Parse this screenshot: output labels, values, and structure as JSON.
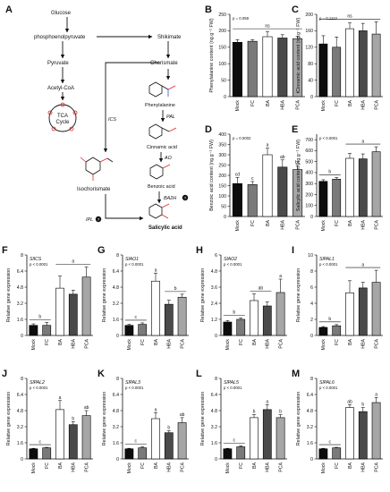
{
  "figure": {
    "pathway": {
      "panel": "A",
      "nodes": {
        "glucose": "Glucose",
        "pep": "phosphoenolpyruvate",
        "pyruvate": "Pyruvate",
        "acetylcoa": "Acetyl-CoA",
        "tca": "TCA",
        "cycle": "Cycle",
        "shikimate": "Shikimate",
        "chorismate": "Chorismate",
        "phenylalanine": "Phenylalanine",
        "cinnamic": "Cinnamic acid",
        "benzoic": "Benzoic acid",
        "salicylic": "Salicylic acid",
        "isochorismate": "Isochorismate"
      },
      "enzymes": {
        "ics": "ICS",
        "pal": "PAL",
        "ao": "AO",
        "ba2h": "BA2H",
        "ipl": "IPL"
      },
      "unknown_marker": "?"
    }
  },
  "chart_data": [
    {
      "panel": "B",
      "type": "bar",
      "categories": [
        "Mock",
        "FC",
        "BA",
        "HBA",
        "PCA"
      ],
      "values": [
        165,
        168,
        182,
        178,
        176
      ],
      "errors": [
        8,
        5,
        16,
        10,
        8
      ],
      "ylabel": "Phenylalanine content (ng.g⁻¹ FW)",
      "ylim": [
        0,
        250
      ],
      "yticks": [
        0,
        50,
        100,
        150,
        200,
        250
      ],
      "pvalue": "p = 0.059",
      "letters": [],
      "groups": [
        {
          "from": 0,
          "to": 4,
          "label": "ns"
        }
      ]
    },
    {
      "panel": "C",
      "type": "bar",
      "categories": [
        "Mock",
        "FC",
        "BA",
        "HBA",
        "PCA"
      ],
      "values": [
        128,
        120,
        165,
        160,
        152
      ],
      "errors": [
        20,
        25,
        14,
        18,
        30
      ],
      "ylabel": "tCinnamic acid content (ng.g⁻¹ FW)",
      "ylim": [
        0,
        200
      ],
      "yticks": [
        0,
        40,
        80,
        120,
        160,
        200
      ],
      "pvalue": "p = 0.1113",
      "letters": [],
      "groups": [
        {
          "from": 0,
          "to": 4,
          "label": "ns"
        }
      ]
    },
    {
      "panel": "D",
      "type": "bar",
      "categories": [
        "Mock",
        "FC",
        "BA",
        "HBA",
        "PCA"
      ],
      "values": [
        160,
        155,
        300,
        240,
        228
      ],
      "errors": [
        30,
        15,
        32,
        35,
        20
      ],
      "ylabel": "Benzoic acid content (ng.g⁻¹ FW)",
      "ylim": [
        0,
        400
      ],
      "yticks": [
        0,
        50,
        100,
        150,
        200,
        250,
        300,
        350,
        400
      ],
      "pvalue": "p = 0.0002",
      "letters": [
        "cd",
        "c",
        "a",
        "ab",
        "bc"
      ],
      "groups": []
    },
    {
      "panel": "E",
      "type": "bar",
      "categories": [
        "Mock",
        "FC",
        "BA",
        "HBA",
        "PCA"
      ],
      "values": [
        320,
        340,
        530,
        525,
        590
      ],
      "errors": [
        15,
        15,
        45,
        45,
        45
      ],
      "ylabel": "Salicylic acid content (ng.g⁻¹ FW)",
      "ylim": [
        0,
        750
      ],
      "yticks": [
        0,
        100,
        200,
        300,
        400,
        500,
        600,
        700
      ],
      "pvalue": "p < 0.0001",
      "letters": [],
      "groups": [
        {
          "from": 0,
          "to": 1,
          "label": "b"
        },
        {
          "from": 2,
          "to": 4,
          "label": "a"
        }
      ]
    },
    {
      "panel": "F",
      "gene": "SlICS",
      "type": "bar",
      "categories": [
        "Mock",
        "FC",
        "BA",
        "HBA",
        "PCA"
      ],
      "values": [
        1.0,
        1.0,
        4.7,
        4.1,
        5.8
      ],
      "errors": [
        0.15,
        0.3,
        1.2,
        0.4,
        1.0
      ],
      "ylabel": "Relative gene expression",
      "ylim": [
        0,
        8
      ],
      "yticks": [
        0,
        1.6,
        3.2,
        4.8,
        6.4,
        8
      ],
      "pvalue": "p < 0.0001",
      "letters": [],
      "groups": [
        {
          "from": 0,
          "to": 1,
          "label": "b"
        },
        {
          "from": 2,
          "to": 4,
          "label": "a"
        }
      ]
    },
    {
      "panel": "G",
      "gene": "SlAO1",
      "type": "bar",
      "categories": [
        "Mock",
        "FC",
        "BA",
        "HBA",
        "PCA"
      ],
      "values": [
        1.0,
        1.1,
        5.4,
        3.1,
        3.8
      ],
      "errors": [
        0.1,
        0.15,
        0.8,
        0.4,
        0.3
      ],
      "ylabel": "Relative gene expression",
      "ylim": [
        0,
        8
      ],
      "yticks": [
        0,
        1.6,
        3.2,
        4.8,
        6.4,
        8
      ],
      "pvalue": "p < 0.0001",
      "letters": [
        "",
        "",
        "a",
        "",
        ""
      ],
      "groups": [
        {
          "from": 0,
          "to": 1,
          "label": "c"
        },
        {
          "from": 3,
          "to": 4,
          "label": "b"
        }
      ]
    },
    {
      "panel": "H",
      "gene": "SlAO2",
      "type": "bar",
      "categories": [
        "Mock",
        "FC",
        "BA",
        "HBA",
        "PCA"
      ],
      "values": [
        1.0,
        1.2,
        2.6,
        2.2,
        3.2
      ],
      "errors": [
        0.1,
        0.1,
        0.5,
        0.3,
        1.0
      ],
      "ylabel": "Relative gene expression",
      "ylim": [
        0,
        6
      ],
      "yticks": [
        0,
        1.2,
        2.4,
        3.6,
        4.8,
        6
      ],
      "pvalue": "p < 0.0001",
      "letters": [
        "",
        "",
        "",
        "",
        "a"
      ],
      "groups": [
        {
          "from": 0,
          "to": 1,
          "label": "b"
        },
        {
          "from": 2,
          "to": 3,
          "label": "ab"
        }
      ]
    },
    {
      "panel": "I",
      "gene": "SlPAL1",
      "type": "bar",
      "categories": [
        "Mock",
        "FC",
        "BA",
        "HBA",
        "PCA"
      ],
      "values": [
        1.0,
        1.2,
        5.3,
        5.9,
        6.6
      ],
      "errors": [
        0.1,
        0.15,
        1.5,
        0.7,
        1.5
      ],
      "ylabel": "Relative gene expression",
      "ylim": [
        0,
        10
      ],
      "yticks": [
        0,
        2,
        4,
        6,
        8,
        10
      ],
      "pvalue": "p < 0.0001",
      "letters": [],
      "groups": [
        {
          "from": 0,
          "to": 1,
          "label": "b"
        },
        {
          "from": 2,
          "to": 4,
          "label": "a"
        }
      ]
    },
    {
      "panel": "J",
      "gene": "SlPAL2",
      "type": "bar",
      "categories": [
        "Mock",
        "FC",
        "BA",
        "HBA",
        "PCA"
      ],
      "values": [
        1.0,
        1.1,
        4.9,
        3.4,
        4.3
      ],
      "errors": [
        0.05,
        0.05,
        0.9,
        0.3,
        0.5
      ],
      "ylabel": "Relative gene expression",
      "ylim": [
        0,
        8
      ],
      "yticks": [
        0,
        1.6,
        3.2,
        4.8,
        6.4,
        8
      ],
      "pvalue": "p < 0.0001",
      "letters": [
        "",
        "",
        "a",
        "b",
        "ab"
      ],
      "groups": [
        {
          "from": 0,
          "to": 1,
          "label": "c"
        }
      ]
    },
    {
      "panel": "K",
      "gene": "SlPAL3",
      "type": "bar",
      "categories": [
        "Mock",
        "FC",
        "BA",
        "HBA",
        "PCA"
      ],
      "values": [
        1.0,
        1.1,
        4.0,
        2.6,
        3.6
      ],
      "errors": [
        0.05,
        0.1,
        0.6,
        0.2,
        0.5
      ],
      "ylabel": "Relative gene expression",
      "ylim": [
        0,
        8
      ],
      "yticks": [
        0,
        1.6,
        3.2,
        4.8,
        6.4,
        8
      ],
      "pvalue": "p < 0.0001",
      "letters": [
        "",
        "",
        "a",
        "b",
        "ab"
      ],
      "groups": [
        {
          "from": 0,
          "to": 1,
          "label": "c"
        }
      ]
    },
    {
      "panel": "L",
      "gene": "SlPAL5",
      "type": "bar",
      "categories": [
        "Mock",
        "FC",
        "BA",
        "HBA",
        "PCA"
      ],
      "values": [
        1.0,
        1.2,
        4.1,
        4.9,
        4.1
      ],
      "errors": [
        0.05,
        0.1,
        0.3,
        0.5,
        0.3
      ],
      "ylabel": "Relative gene expression",
      "ylim": [
        0,
        8
      ],
      "yticks": [
        0,
        1.6,
        3.2,
        4.8,
        6.4,
        8
      ],
      "pvalue": "p < 0.0001",
      "letters": [
        "",
        "",
        "b",
        "a",
        "b"
      ],
      "groups": [
        {
          "from": 0,
          "to": 1,
          "label": "c"
        }
      ]
    },
    {
      "panel": "M",
      "gene": "SlPAL6",
      "type": "bar",
      "categories": [
        "Mock",
        "FC",
        "BA",
        "HBA",
        "PCA"
      ],
      "values": [
        1.0,
        1.1,
        5.1,
        4.7,
        5.6
      ],
      "errors": [
        0.05,
        0.05,
        0.3,
        0.4,
        0.5
      ],
      "ylabel": "Relative gene expression",
      "ylim": [
        0,
        8
      ],
      "yticks": [
        0,
        1.6,
        3.2,
        4.8,
        6.4,
        8
      ],
      "pvalue": "p < 0.0001",
      "letters": [
        "",
        "",
        "ab",
        "b",
        "a"
      ],
      "groups": [
        {
          "from": 0,
          "to": 1,
          "label": "c"
        }
      ]
    }
  ],
  "style": {
    "bar_fills": [
      "#0d0d0d",
      "#7a7a7a",
      "#ffffff",
      "#4a4a4a",
      "#a6a6a6"
    ],
    "bar_stroke": "#000000",
    "text_color": "#111111"
  }
}
